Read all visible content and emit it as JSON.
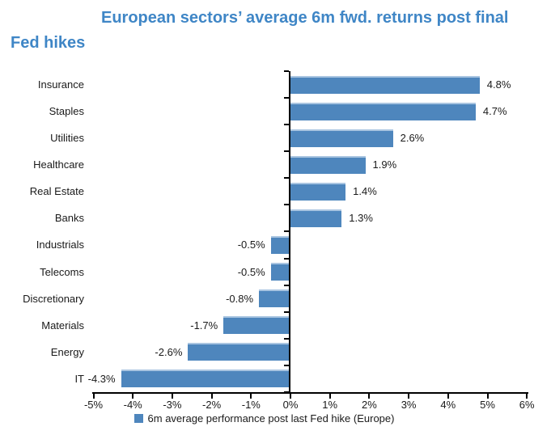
{
  "title": {
    "line1": "European sectors’ average 6m fwd. returns post final",
    "line2": "Fed hikes"
  },
  "chart_data": {
    "type": "bar",
    "orientation": "horizontal",
    "title": "European sectors’ average 6m fwd. returns post final Fed hikes",
    "categories": [
      "Insurance",
      "Staples",
      "Utilities",
      "Healthcare",
      "Real Estate",
      "Banks",
      "Industrials",
      "Telecoms",
      "Discretionary",
      "Materials",
      "Energy",
      "IT"
    ],
    "values": [
      4.8,
      4.7,
      2.6,
      1.9,
      1.4,
      1.3,
      -0.5,
      -0.5,
      -0.8,
      -1.7,
      -2.6,
      -4.3
    ],
    "value_labels": [
      "4.8%",
      "4.7%",
      "2.6%",
      "1.9%",
      "1.4%",
      "1.3%",
      "-0.5%",
      "-0.5%",
      "-0.8%",
      "-1.7%",
      "-2.6%",
      "-4.3%"
    ],
    "xlabel": "",
    "ylabel": "",
    "xlim": [
      -5,
      6
    ],
    "x_ticks": [
      -5,
      -4,
      -3,
      -2,
      -1,
      0,
      1,
      2,
      3,
      4,
      5,
      6
    ],
    "x_tick_labels": [
      "-5%",
      "-4%",
      "-3%",
      "-2%",
      "-1%",
      "0%",
      "1%",
      "2%",
      "3%",
      "4%",
      "5%",
      "6%"
    ],
    "grid": false,
    "legend_position": "bottom",
    "legend": [
      "6m average performance post last Fed hike (Europe)"
    ]
  },
  "colors": {
    "bar": "#4e86bd",
    "bar_top_edge": "#a9c5e1",
    "title": "#3f86c6",
    "axis": "#000000",
    "text": "#1a1a1a"
  }
}
